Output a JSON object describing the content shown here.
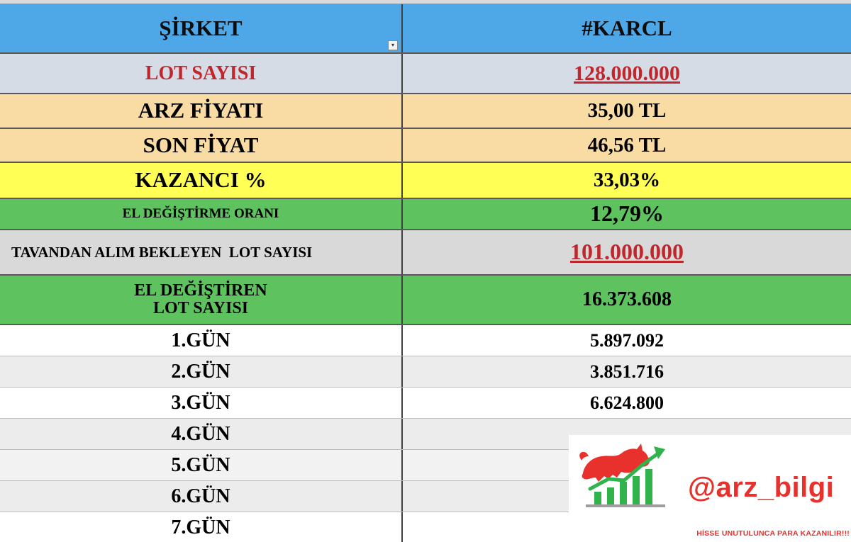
{
  "header": {
    "company_label": "ŞİRKET",
    "ticker": "#KARCL",
    "filter_glyph": "▾"
  },
  "rows": {
    "lot": {
      "label": "LOT SAYISI",
      "value": "128.000.000"
    },
    "arz": {
      "label": "ARZ FİYATI",
      "value": "35,00 TL"
    },
    "son": {
      "label": "SON FİYAT",
      "value": "46,56 TL"
    },
    "kazanc": {
      "label": "KAZANCI %",
      "value": "33,03%"
    },
    "el_degistirme": {
      "label": "EL DEĞİŞTİRME ORANI",
      "value": "12,79%"
    },
    "tavandan": {
      "label": "TAVANDAN ALIM BEKLEYEN  LOT SAYISI",
      "value": "101.000.000"
    },
    "el_degistiren": {
      "label_line1": "EL DEĞİŞTİREN",
      "label_line2": "LOT SAYISI",
      "value": "16.373.608"
    }
  },
  "days": [
    {
      "label": "1.GÜN",
      "value": "5.897.092"
    },
    {
      "label": "2.GÜN",
      "value": "3.851.716"
    },
    {
      "label": "3.GÜN",
      "value": "6.624.800"
    },
    {
      "label": "4.GÜN",
      "value": ""
    },
    {
      "label": "5.GÜN",
      "value": ""
    },
    {
      "label": "6.GÜN",
      "value": ""
    },
    {
      "label": "7.GÜN",
      "value": ""
    }
  ],
  "watermark": {
    "handle": "@arz_bilgi",
    "slogan": "HİSSE UNUTULUNCA PARA KAZANILIR!!!",
    "logo_icon": "bull-growth-chart-icon"
  },
  "colors": {
    "header_blue": "#4ea7e7",
    "lot_row": "#d6dce5",
    "price_rows": "#f9dca4",
    "kazanc_row": "#ffff55",
    "green_rows": "#5ec25f",
    "grey_row": "#d9d9d9",
    "accent_red": "#c0272d",
    "watermark_red": "#e8312c",
    "watermark_green": "#2fb34a"
  }
}
